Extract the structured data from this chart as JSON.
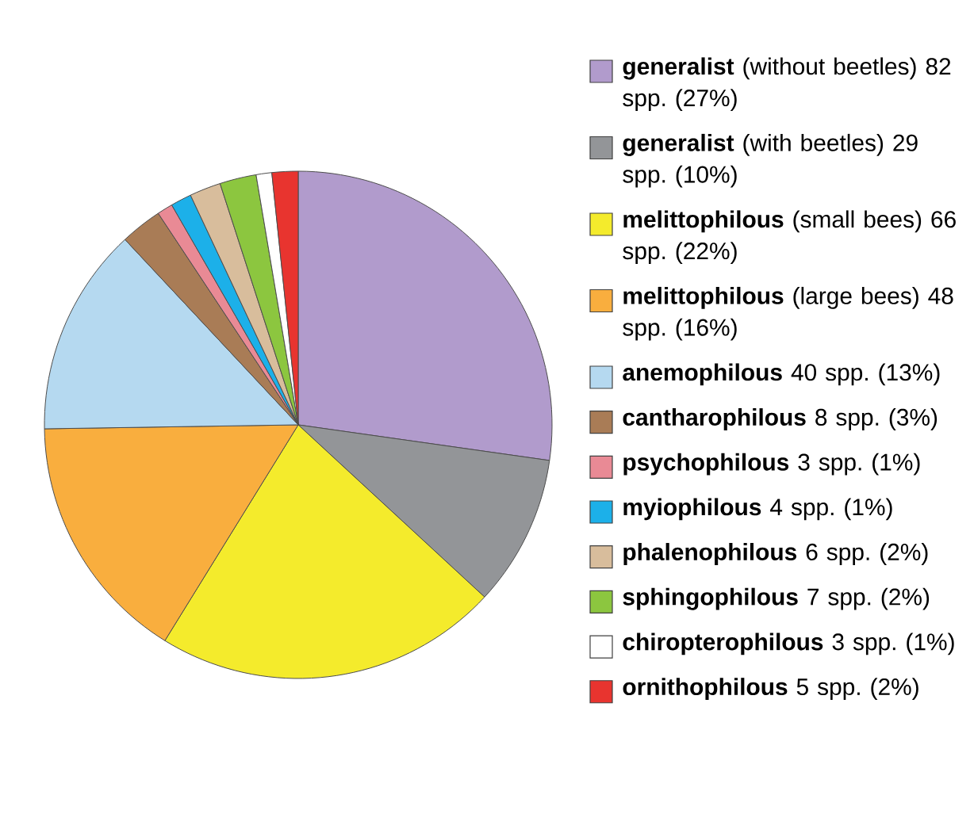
{
  "chart_data": {
    "type": "pie",
    "legend": "right",
    "categories": [
      "**generalist** (without beetles) 82 spp. (27%)",
      "**generalist** (with beetles) 29 spp. (10%)",
      "**melittophilous** (small bees) 66 spp. (22%)",
      "**melittophilous** (large bees) 48 spp. (16%)",
      "**anemophilous** 40 spp. (13%)",
      "**cantharophilous** 8 spp. (3%)",
      "**psychophilous** 3 spp. (1%)",
      "**myiophilous** 4 spp. (1%)",
      "**phalenophilous** 6 spp. (2%)",
      "**sphingophilous** 7 spp. (2%)",
      "**chiropterophilous** 3 spp. (1%)",
      "**ornithophilous** 5 spp. (2%)"
    ],
    "values": [
      82,
      29,
      66,
      48,
      40,
      8,
      3,
      4,
      6,
      7,
      3,
      5
    ],
    "colors": [
      "#b19bcc",
      "#939598",
      "#f4eb2c",
      "#f9ae3e",
      "#b5d9f0",
      "#a97c56",
      "#e98a95",
      "#1cb0e9",
      "#d8bd9c",
      "#8cc63f",
      "#ffffff",
      "#e8342f"
    ]
  }
}
